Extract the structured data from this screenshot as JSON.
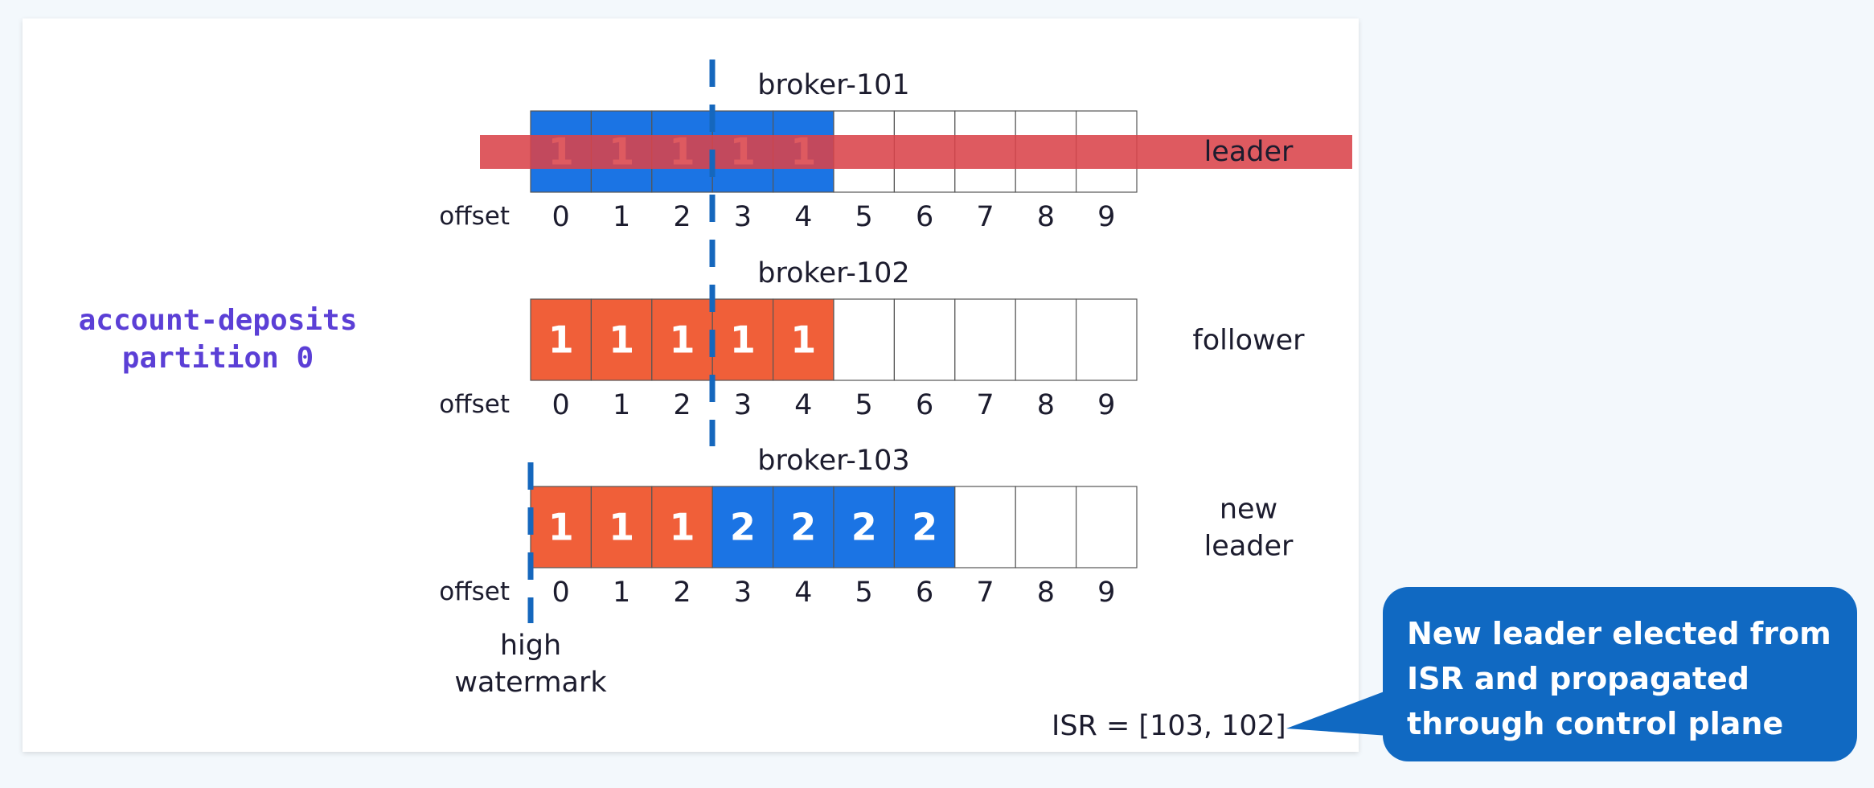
{
  "topic": {
    "line1": "account-deposits",
    "line2": "partition 0"
  },
  "offset_label": "offset",
  "offsets": [
    "0",
    "1",
    "2",
    "3",
    "4",
    "5",
    "6",
    "7",
    "8",
    "9"
  ],
  "brokers": [
    {
      "name": "broker-101",
      "role_lines": [
        "leader"
      ],
      "cells": [
        "1",
        "1",
        "1",
        "1",
        "1",
        "",
        "",
        "",
        "",
        ""
      ],
      "cell_colors": [
        "blue",
        "blue",
        "blue",
        "blue",
        "blue",
        "empty",
        "empty",
        "empty",
        "empty",
        "empty"
      ],
      "struck": true
    },
    {
      "name": "broker-102",
      "role_lines": [
        "follower"
      ],
      "cells": [
        "1",
        "1",
        "1",
        "1",
        "1",
        "",
        "",
        "",
        "",
        ""
      ],
      "cell_colors": [
        "orange",
        "orange",
        "orange",
        "orange",
        "orange",
        "empty",
        "empty",
        "empty",
        "empty",
        "empty"
      ],
      "struck": false
    },
    {
      "name": "broker-103",
      "role_lines": [
        "new",
        "leader"
      ],
      "cells": [
        "1",
        "1",
        "1",
        "2",
        "2",
        "2",
        "2",
        "",
        "",
        ""
      ],
      "cell_colors": [
        "orange",
        "orange",
        "orange",
        "blue",
        "blue",
        "blue",
        "blue",
        "empty",
        "empty",
        "empty"
      ],
      "struck": false
    }
  ],
  "high_watermark": {
    "line1": "high",
    "line2": "watermark"
  },
  "isr_text": "ISR = [103, 102]",
  "callout": {
    "lines": [
      "New leader elected from",
      "ISR and propagated",
      "through control plane"
    ]
  },
  "colors": {
    "blue": "#1b74e4",
    "orange": "#f05f39",
    "strike": "#d9434a",
    "dash": "#1567bd",
    "topic_text": "#5b3fd6",
    "callout_bg": "#1069c2",
    "text": "#1c1c2e"
  }
}
